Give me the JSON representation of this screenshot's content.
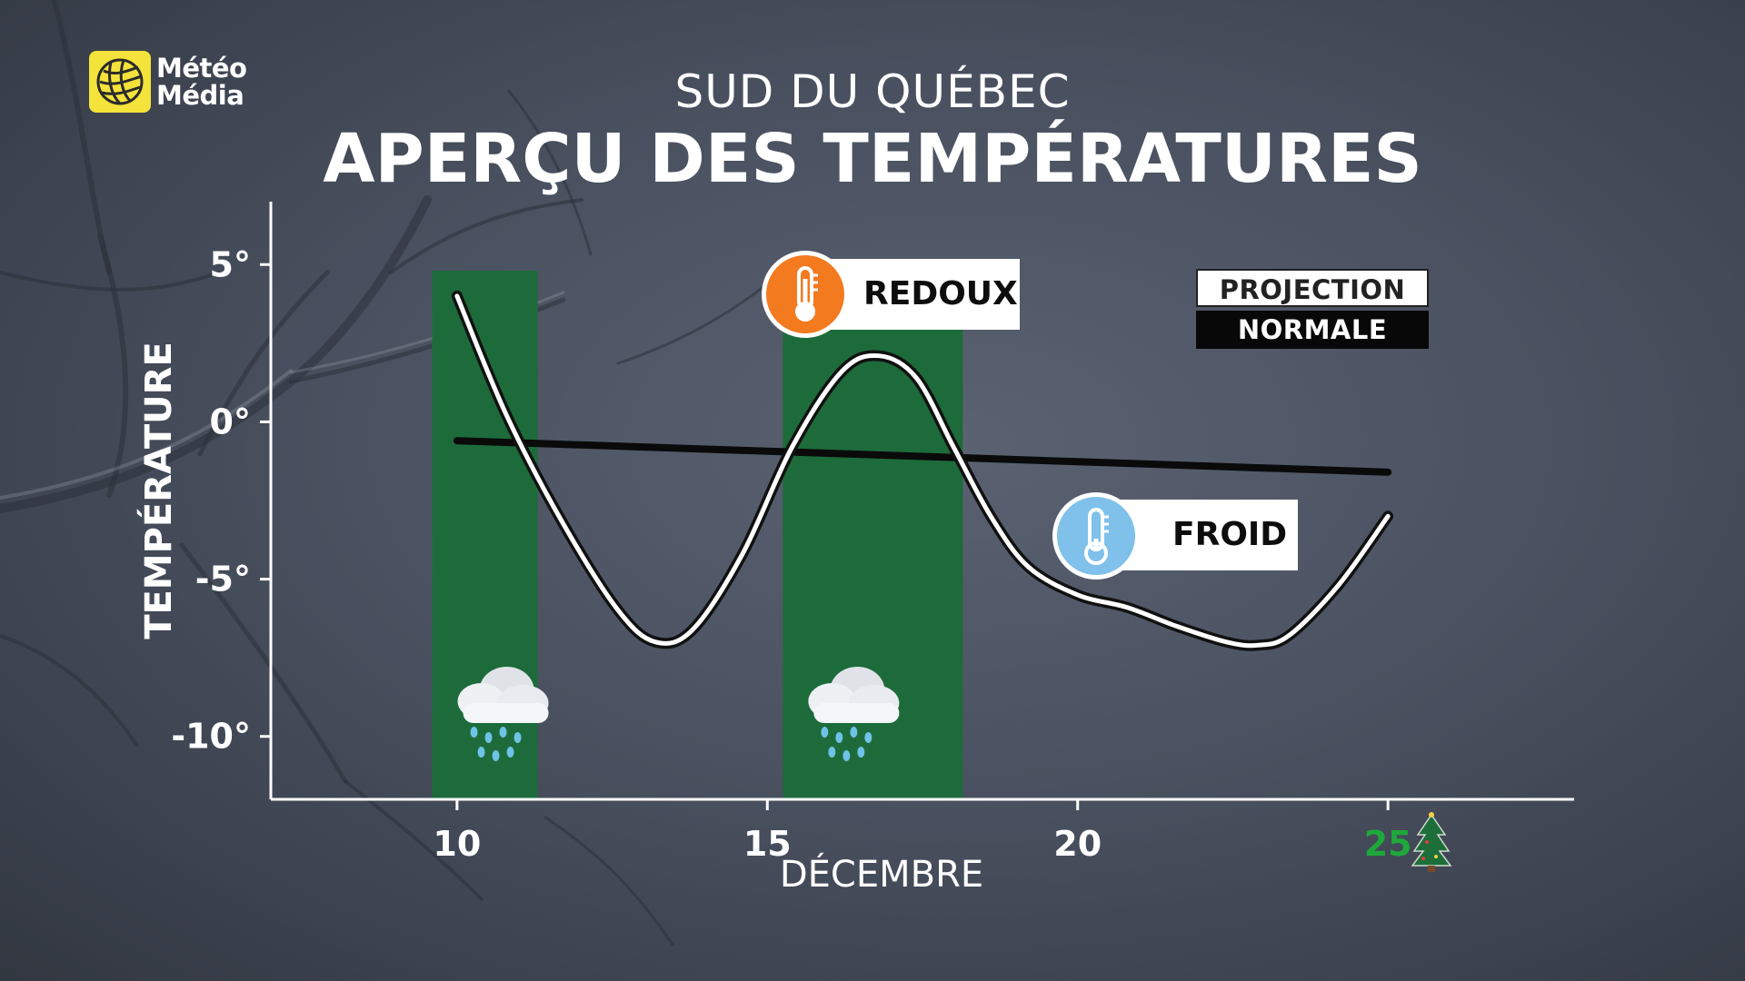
{
  "brand": {
    "line1": "Météo",
    "line2": "Média",
    "color": "#f3e33a"
  },
  "header": {
    "subtitle": "SUD DU QUÉBEC",
    "title": "APERÇU DES TEMPÉRATURES"
  },
  "legend": {
    "projection": "PROJECTION",
    "normale": "NORMALE"
  },
  "annotations": {
    "redoux": "REDOUX",
    "froid": "FROID"
  },
  "chart_data": {
    "type": "line",
    "xlabel": "DÉCEMBRE",
    "ylabel": "TEMPÉRATURE",
    "xlim": [
      7,
      28
    ],
    "ylim": [
      -12,
      7
    ],
    "x_ticks": [
      {
        "value": 10,
        "label": "10",
        "color": "#ffffff"
      },
      {
        "value": 15,
        "label": "15",
        "color": "#ffffff"
      },
      {
        "value": 20,
        "label": "20",
        "color": "#ffffff"
      },
      {
        "value": 25,
        "label": "25",
        "color": "#1fa83a"
      }
    ],
    "y_ticks": [
      {
        "value": 5,
        "label": "5°"
      },
      {
        "value": 0,
        "label": "0°"
      },
      {
        "value": -5,
        "label": "-5°"
      },
      {
        "value": -10,
        "label": "-10°"
      }
    ],
    "series": [
      {
        "name": "PROJECTION",
        "color": "#ffffff",
        "x": [
          10,
          10.8,
          11.7,
          12.6,
          13.2,
          13.8,
          14.6,
          15.4,
          16.2,
          16.8,
          17.4,
          18.0,
          18.6,
          19.2,
          20.0,
          20.8,
          21.6,
          22.4,
          22.9,
          23.4,
          24.2,
          25
        ],
        "y": [
          4,
          0.2,
          -3.2,
          -6.0,
          -7.0,
          -6.6,
          -4.2,
          -0.8,
          1.6,
          2.1,
          1.4,
          -0.8,
          -3.0,
          -4.6,
          -5.5,
          -5.9,
          -6.5,
          -7.0,
          -7.1,
          -6.8,
          -5.2,
          -3.0
        ]
      },
      {
        "name": "NORMALE",
        "color": "#0a0a0a",
        "x": [
          10,
          25
        ],
        "y": [
          -0.6,
          -1.6
        ]
      }
    ],
    "precipitation_bands": [
      {
        "start": 9.6,
        "end": 11.3,
        "icon": "rain-cloud-icon"
      },
      {
        "start": 15.25,
        "end": 18.15,
        "icon": "rain-cloud-icon"
      }
    ],
    "band_color": "#1d6b3b"
  }
}
